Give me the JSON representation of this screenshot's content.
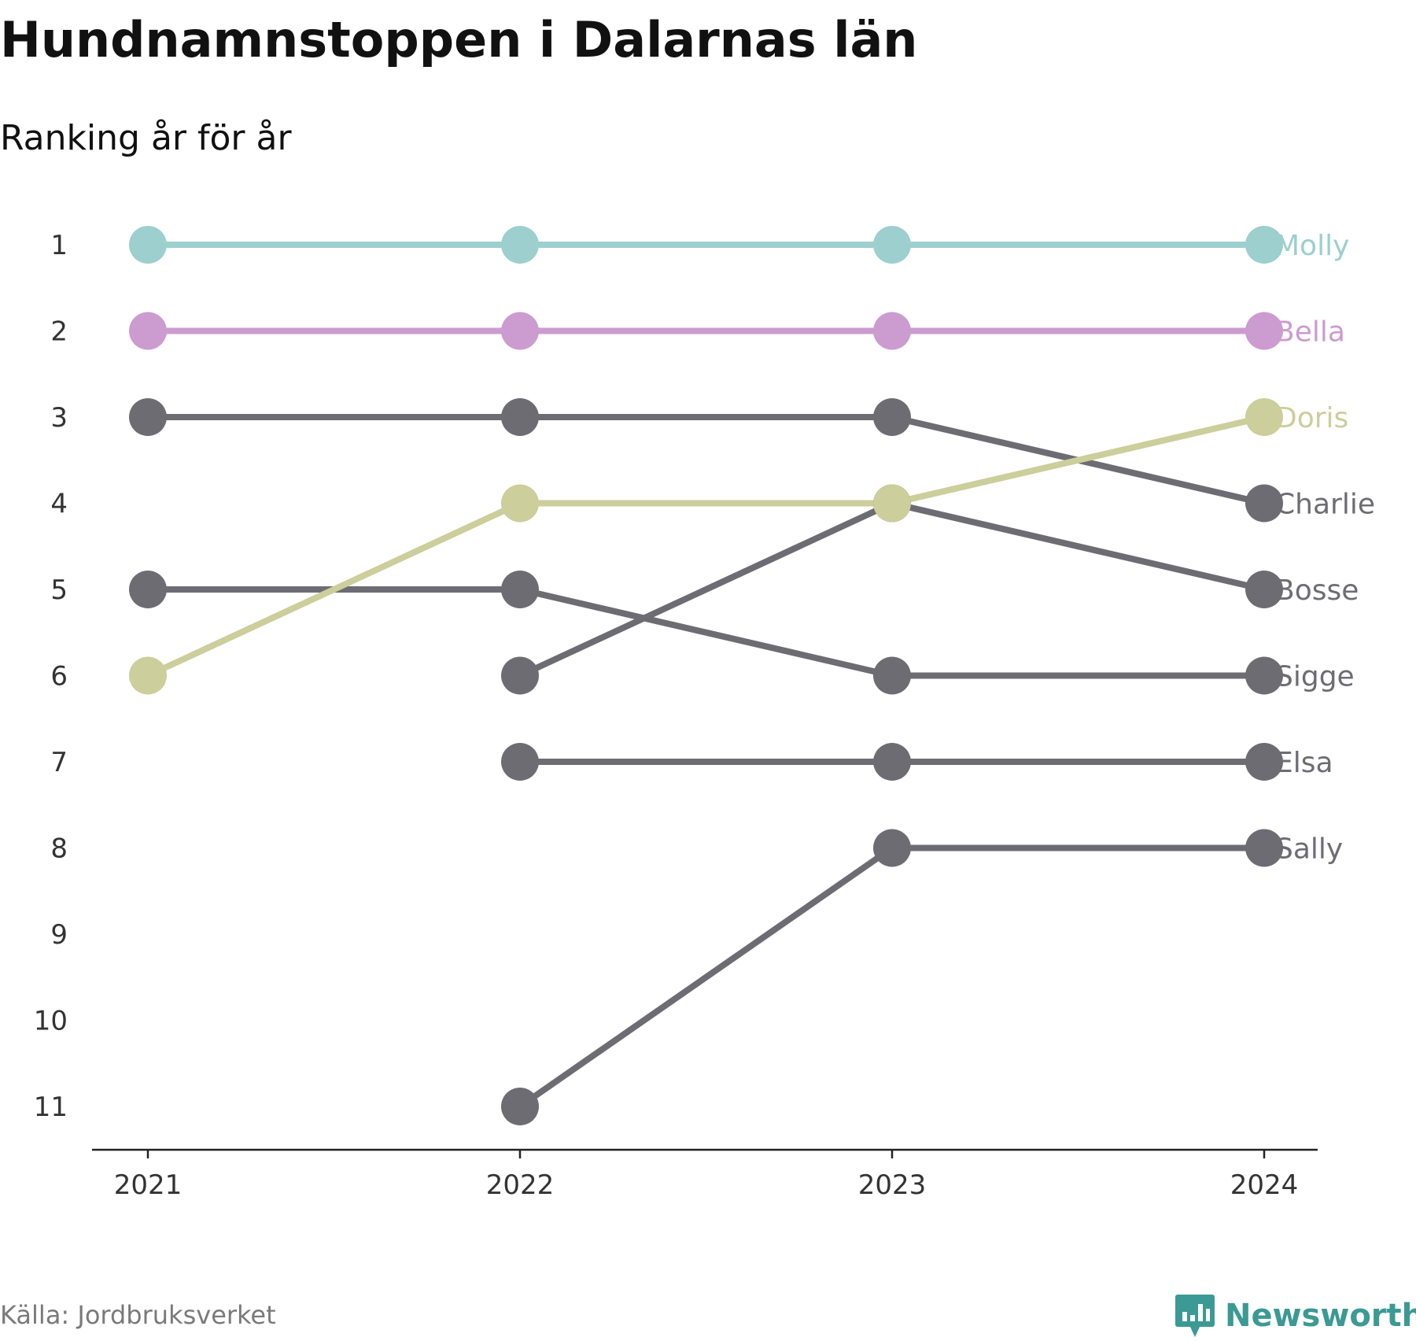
{
  "title": "Hundnamnstoppen i Dalarnas län",
  "subtitle": "Ranking år för år",
  "source": "Källa: Jordbruksverket",
  "brand": {
    "name": "Newsworthy",
    "icon": "bar-chart-icon",
    "color": "#3b9a93"
  },
  "chart_data": {
    "type": "line",
    "title": "Hundnamnstoppen i Dalarnas län",
    "subtitle": "Ranking år för år",
    "x": [
      "2021",
      "2022",
      "2023",
      "2024"
    ],
    "y_ticks": [
      "1",
      "2",
      "3",
      "4",
      "5",
      "6",
      "7",
      "8",
      "9",
      "10",
      "11"
    ],
    "ylim": [
      1,
      11
    ],
    "y_inverted": true,
    "grid": false,
    "legend": "labels at line ends (right)",
    "series": [
      {
        "name": "Molly",
        "color": "#9ccfce",
        "values": [
          1,
          1,
          1,
          1
        ]
      },
      {
        "name": "Bella",
        "color": "#cc9bcf",
        "values": [
          2,
          2,
          2,
          2
        ]
      },
      {
        "name": "Doris",
        "color": "#ccce9b",
        "values": [
          6,
          4,
          4,
          3
        ]
      },
      {
        "name": "Charlie",
        "color": "#6d6c73",
        "values": [
          3,
          3,
          3,
          4
        ]
      },
      {
        "name": "Bosse",
        "color": "#6d6c73",
        "values": [
          null,
          6,
          4,
          5
        ]
      },
      {
        "name": "Sigge",
        "color": "#6d6c73",
        "values": [
          5,
          5,
          6,
          6
        ]
      },
      {
        "name": "Elsa",
        "color": "#6d6c73",
        "values": [
          null,
          7,
          7,
          7
        ]
      },
      {
        "name": "Sally",
        "color": "#6d6c73",
        "values": [
          null,
          11,
          8,
          8
        ]
      }
    ]
  }
}
